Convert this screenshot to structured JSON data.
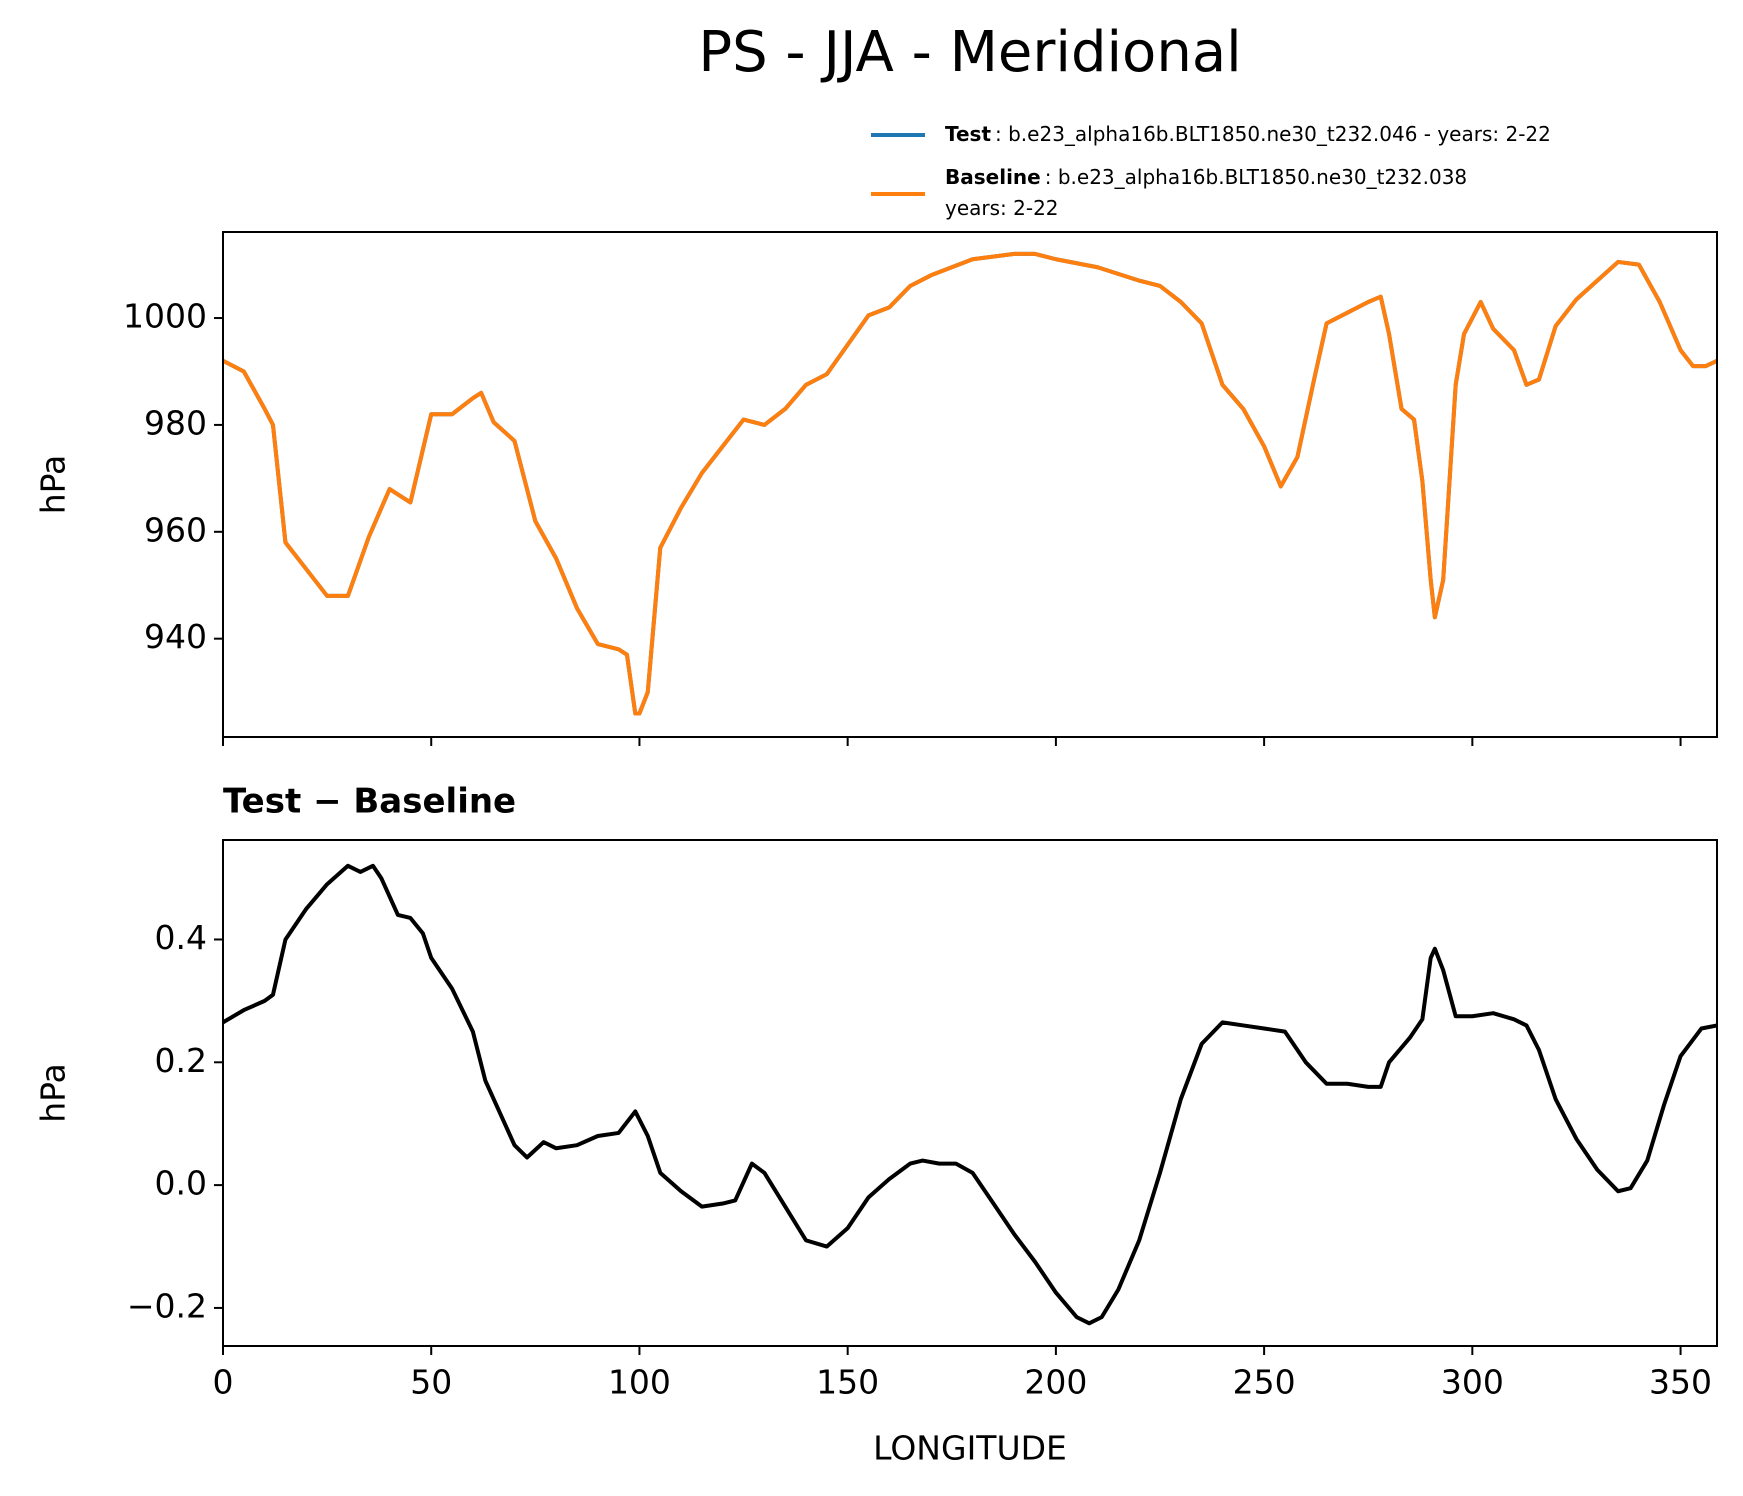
{
  "chart_data": [
    {
      "type": "line",
      "title": "PS - JJA - Meridional",
      "ylabel": "hPa",
      "x": [
        0,
        5,
        10,
        12,
        15,
        20,
        25,
        30,
        35,
        40,
        45,
        50,
        55,
        60,
        62,
        65,
        70,
        75,
        80,
        85,
        90,
        95,
        97,
        99,
        100,
        102,
        105,
        110,
        115,
        120,
        125,
        130,
        135,
        140,
        145,
        150,
        155,
        160,
        165,
        170,
        175,
        180,
        190,
        195,
        200,
        210,
        220,
        225,
        230,
        235,
        240,
        245,
        250,
        254,
        258,
        262,
        265,
        270,
        275,
        278,
        280,
        283,
        286,
        288,
        290,
        291,
        293,
        296,
        298,
        302,
        305,
        310,
        313,
        316,
        320,
        325,
        330,
        335,
        340,
        345,
        350,
        353,
        356,
        358.75
      ],
      "series": [
        {
          "name": "Test",
          "label": [
            ": b.e23_alpha16b.BLT1850.ne30_t232.046 - years: 2-22"
          ],
          "color": "#1f77b4",
          "values": [
            992,
            990,
            983,
            980,
            958,
            953,
            948,
            948,
            959,
            968,
            965.5,
            982,
            982,
            985,
            986,
            980.5,
            977,
            962,
            955,
            945.7,
            939,
            938,
            937,
            926,
            926,
            930,
            957,
            964.5,
            971,
            976,
            981,
            980,
            983,
            987.5,
            989.5,
            995,
            1000.5,
            1002,
            1006,
            1008,
            1009.5,
            1011,
            1012,
            1012,
            1011,
            1009.5,
            1007,
            1006,
            1003,
            999,
            987.5,
            983,
            976,
            968.5,
            974,
            988.5,
            999,
            1001,
            1003,
            1004,
            997,
            983,
            981,
            969.5,
            951,
            944,
            951,
            987.5,
            997,
            1003,
            998,
            994,
            987.5,
            988.5,
            998.5,
            1003.5,
            1007,
            1010.5,
            1010,
            1003,
            994,
            991,
            991,
            992
          ]
        },
        {
          "name": "Baseline",
          "label": [
            ": b.e23_alpha16b.BLT1850.ne30_t232.038",
            "years: 2-22"
          ],
          "color": "#ff7f0e",
          "values": [
            992,
            990,
            983,
            980,
            958,
            953,
            948,
            948,
            959,
            968,
            965.5,
            982,
            982,
            985,
            986,
            980.5,
            977,
            962,
            955,
            945.7,
            939,
            938,
            937,
            926,
            926,
            930,
            957,
            964.5,
            971,
            976,
            981,
            980,
            983,
            987.5,
            989.5,
            995,
            1000.5,
            1002,
            1006,
            1008,
            1009.5,
            1011,
            1012,
            1012,
            1011,
            1009.5,
            1007,
            1006,
            1003,
            999,
            987.5,
            983,
            976,
            968.5,
            974,
            988.5,
            999,
            1001,
            1003,
            1004,
            997,
            983,
            981,
            969.5,
            951,
            944,
            951,
            987.5,
            997,
            1003,
            998,
            994,
            987.5,
            988.5,
            998.5,
            1003.5,
            1007,
            1010.5,
            1010,
            1003,
            994,
            991,
            991,
            992
          ]
        }
      ],
      "xlim": [
        0,
        358.75
      ],
      "xticks": [
        0,
        50,
        100,
        150,
        200,
        250,
        300,
        350
      ],
      "ylim": [
        921.6,
        1016.1
      ],
      "yticks": [
        940,
        960,
        980,
        1000
      ],
      "legend": "outside-upper-right"
    },
    {
      "type": "line",
      "title": "Test − Baseline",
      "xlabel": "LONGITUDE",
      "ylabel": "hPa",
      "color": "#000000",
      "x": [
        0,
        5,
        10,
        12,
        15,
        20,
        25,
        30,
        33,
        36,
        38,
        42,
        45,
        48,
        50,
        55,
        60,
        63,
        67,
        70,
        73,
        77,
        80,
        85,
        90,
        95,
        99,
        102,
        105,
        110,
        115,
        120,
        123,
        127,
        130,
        135,
        140,
        145,
        150,
        155,
        160,
        165,
        168,
        172,
        176,
        180,
        185,
        190,
        195,
        200,
        205,
        208,
        211,
        215,
        220,
        225,
        230,
        235,
        240,
        245,
        250,
        255,
        260,
        265,
        270,
        275,
        278,
        280,
        285,
        288,
        290,
        291,
        293,
        296,
        300,
        305,
        310,
        313,
        316,
        320,
        325,
        330,
        335,
        338,
        342,
        346,
        350,
        355,
        358.75
      ],
      "values": [
        0.265,
        0.285,
        0.3,
        0.31,
        0.4,
        0.45,
        0.49,
        0.52,
        0.51,
        0.52,
        0.5,
        0.44,
        0.435,
        0.41,
        0.37,
        0.32,
        0.25,
        0.17,
        0.11,
        0.065,
        0.045,
        0.07,
        0.06,
        0.065,
        0.08,
        0.085,
        0.12,
        0.08,
        0.02,
        -0.01,
        -0.035,
        -0.03,
        -0.025,
        0.035,
        0.02,
        -0.035,
        -0.09,
        -0.1,
        -0.07,
        -0.02,
        0.01,
        0.035,
        0.04,
        0.035,
        0.035,
        0.02,
        -0.03,
        -0.08,
        -0.125,
        -0.175,
        -0.215,
        -0.225,
        -0.215,
        -0.17,
        -0.09,
        0.02,
        0.14,
        0.23,
        0.265,
        0.26,
        0.255,
        0.25,
        0.2,
        0.165,
        0.165,
        0.16,
        0.16,
        0.2,
        0.24,
        0.27,
        0.37,
        0.385,
        0.35,
        0.275,
        0.275,
        0.28,
        0.27,
        0.26,
        0.22,
        0.14,
        0.075,
        0.025,
        -0.01,
        -0.005,
        0.04,
        0.13,
        0.21,
        0.255,
        0.26
      ],
      "xlim": [
        0,
        358.75
      ],
      "xticks": [
        0,
        50,
        100,
        150,
        200,
        250,
        300,
        350
      ],
      "ylim": [
        -0.262,
        0.562
      ],
      "yticks": [
        {
          "value": -0.2,
          "label": "−0.2"
        },
        {
          "value": 0,
          "label": "0.0"
        },
        {
          "value": 0.2,
          "label": "0.2"
        },
        {
          "value": 0.4,
          "label": "0.4"
        }
      ]
    }
  ]
}
